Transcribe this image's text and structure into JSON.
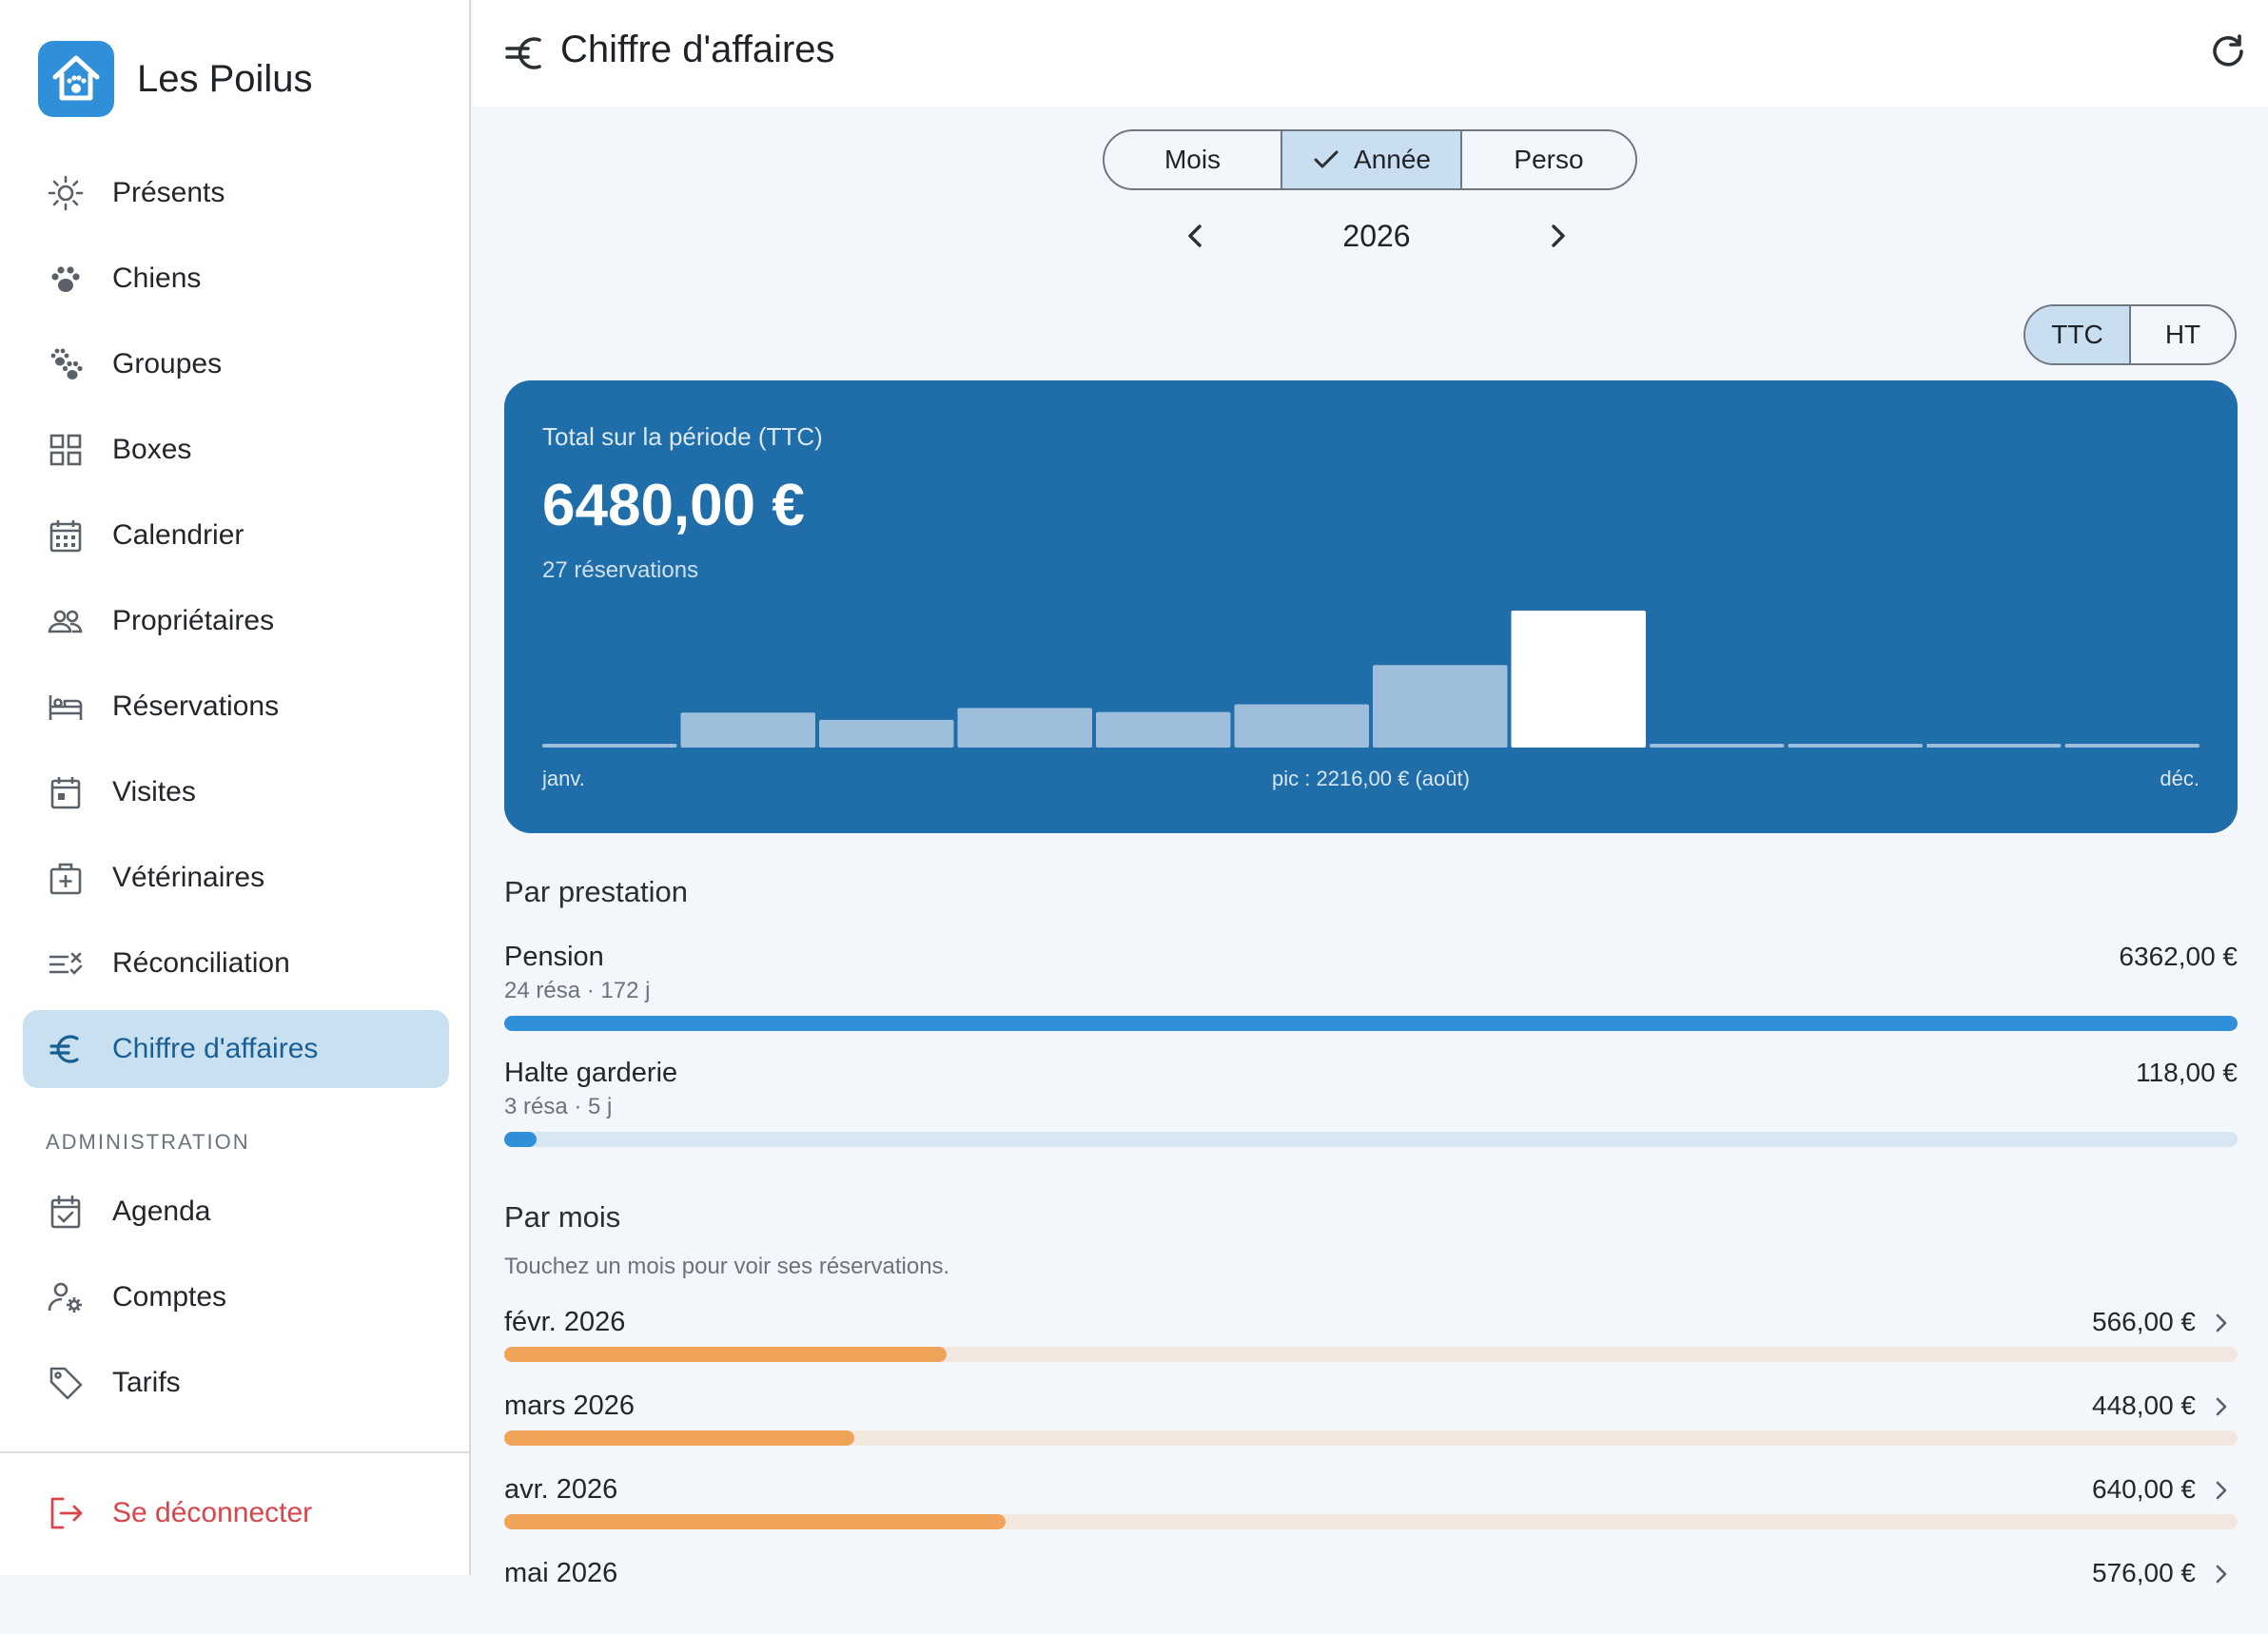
{
  "app": {
    "name": "Les Poilus"
  },
  "nav": [
    {
      "label": "Présents",
      "icon": "sun-icon"
    },
    {
      "label": "Chiens",
      "icon": "paw-icon"
    },
    {
      "label": "Groupes",
      "icon": "paws-icon"
    },
    {
      "label": "Boxes",
      "icon": "grid-icon"
    },
    {
      "label": "Calendrier",
      "icon": "calendar-icon"
    },
    {
      "label": "Propriétaires",
      "icon": "people-icon"
    },
    {
      "label": "Réservations",
      "icon": "bed-icon"
    },
    {
      "label": "Visites",
      "icon": "calendar-event-icon"
    },
    {
      "label": "Vétérinaires",
      "icon": "medical-bag-icon"
    },
    {
      "label": "Réconciliation",
      "icon": "reconcile-icon"
    },
    {
      "label": "Chiffre d'affaires",
      "icon": "euro-icon",
      "active": true
    }
  ],
  "admin": {
    "section_label": "ADMINISTRATION",
    "items": [
      {
        "label": "Agenda",
        "icon": "calendar-check-icon"
      },
      {
        "label": "Comptes",
        "icon": "account-cog-icon"
      },
      {
        "label": "Tarifs",
        "icon": "tag-icon"
      }
    ]
  },
  "logout": {
    "label": "Se déconnecter",
    "icon": "logout-icon"
  },
  "header": {
    "title": "Chiffre d'affaires"
  },
  "period": {
    "options": [
      "Mois",
      "Année",
      "Perso"
    ],
    "selected": "Année",
    "value": "2026"
  },
  "tax_toggle": {
    "options": [
      "TTC",
      "HT"
    ],
    "selected": "TTC"
  },
  "summary": {
    "label": "Total sur la période (TTC)",
    "total": "6480,00 €",
    "reservations": "27 réservations",
    "axis_start": "janv.",
    "axis_end": "déc.",
    "peak": "pic : 2216,00 € (août)"
  },
  "chart_data": {
    "type": "bar",
    "categories": [
      "janv.",
      "févr.",
      "mars",
      "avr.",
      "mai",
      "juin",
      "juil.",
      "août",
      "sept.",
      "oct.",
      "nov.",
      "déc."
    ],
    "values": [
      0,
      566,
      448,
      640,
      576,
      700,
      1334,
      2216,
      0,
      0,
      0,
      0
    ],
    "highlight_index": 7
  },
  "by_service": {
    "title": "Par prestation",
    "items": [
      {
        "name": "Pension",
        "sub": "24 résa · 172 j",
        "amount": "6362,00 €",
        "fraction": 1.0
      },
      {
        "name": "Halte garderie",
        "sub": "3 résa · 5 j",
        "amount": "118,00 €",
        "fraction": 0.0185
      }
    ]
  },
  "by_month": {
    "title": "Par mois",
    "hint": "Touchez un mois pour voir ses réservations.",
    "items": [
      {
        "name": "févr. 2026",
        "amount": "566,00 €",
        "fraction": 0.255
      },
      {
        "name": "mars 2026",
        "amount": "448,00 €",
        "fraction": 0.202
      },
      {
        "name": "avr. 2026",
        "amount": "640,00 €",
        "fraction": 0.289
      },
      {
        "name": "mai 2026",
        "amount": "576,00 €",
        "fraction": 0.26
      }
    ]
  },
  "colors": {
    "accent": "#1f6da9",
    "highlight_bar": "#ffffff",
    "bar": "#9dbfdb",
    "service_bar": "#2f8fd8",
    "month_bar": "#f0a45a",
    "logout": "#d8454b"
  }
}
